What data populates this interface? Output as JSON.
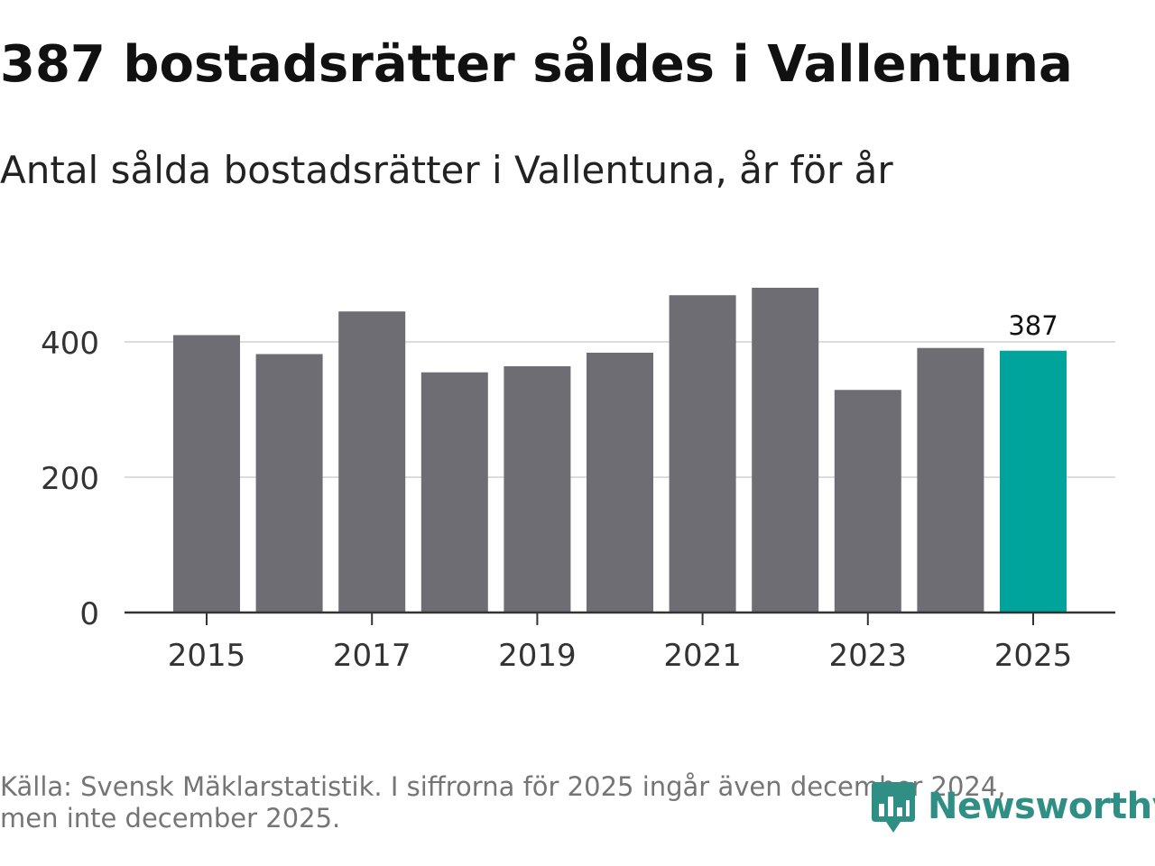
{
  "header": {
    "title": "387 bostadsrätter såldes i Vallentuna",
    "subtitle": "Antal sålda bostadsrätter i Vallentuna, år för år"
  },
  "footer": {
    "source_line1": "Källa: Svensk Mäklarstatistik. I siffrorna för 2025 ingår även december 2024,",
    "source_line2": "men inte december 2025.",
    "logo_text": "Newsworthy"
  },
  "colors": {
    "bar": "#6e6d73",
    "highlight": "#00a49a",
    "grid": "#dcdcdc",
    "axis": "#333333",
    "logo": "#2f8f84"
  },
  "chart_data": {
    "type": "bar",
    "title": "387 bostadsrätter såldes i Vallentuna",
    "subtitle": "Antal sålda bostadsrätter i Vallentuna, år för år",
    "xlabel": "",
    "ylabel": "",
    "categories": [
      "2015",
      "2016",
      "2017",
      "2018",
      "2019",
      "2020",
      "2021",
      "2022",
      "2023",
      "2024",
      "2025"
    ],
    "x_tick_labels": [
      "2015",
      "2017",
      "2019",
      "2021",
      "2023",
      "2025"
    ],
    "values": [
      410,
      382,
      445,
      355,
      364,
      384,
      469,
      480,
      329,
      391,
      387
    ],
    "highlight_index": 10,
    "highlight_label": "387",
    "y_ticks": [
      0,
      200,
      400
    ],
    "ylim": [
      0,
      490
    ],
    "grid": true,
    "legend": "none"
  }
}
